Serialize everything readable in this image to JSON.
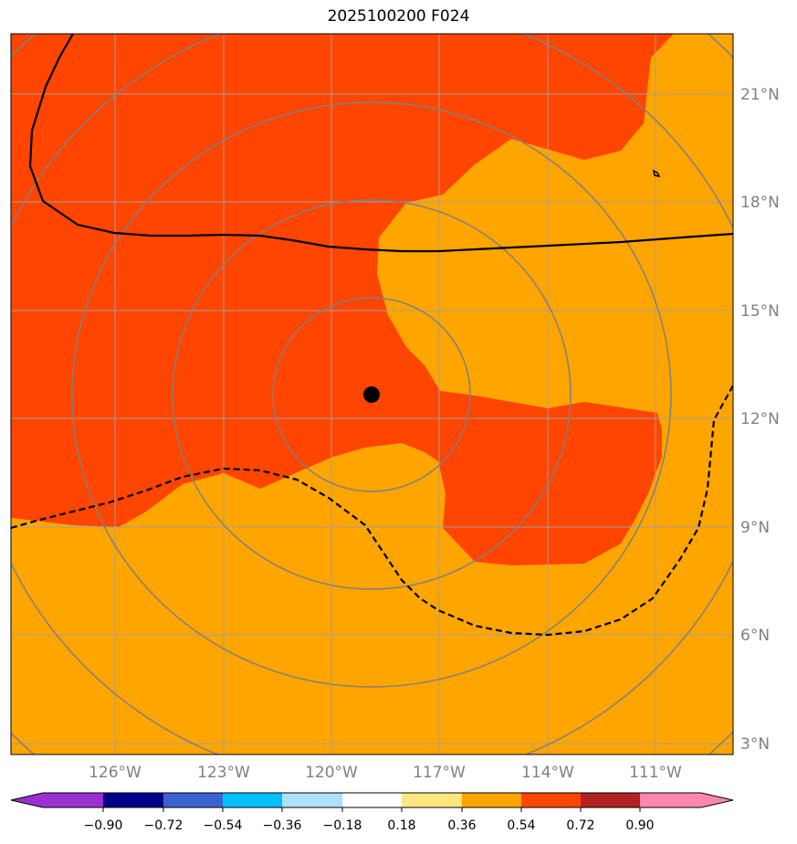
{
  "title": "2025100200 F024",
  "map": {
    "background_color": "#ffa500",
    "region_color": "#ff4500",
    "grid_color": "#a0a0a0",
    "ring_color": "#808080",
    "center_marker": "storm-center-dot",
    "latitudes": [
      "21°N",
      "18°N",
      "15°N",
      "12°N",
      "9°N",
      "6°N",
      "3°N"
    ],
    "longitudes": [
      "126°W",
      "123°W",
      "120°W",
      "117°W",
      "114°W",
      "111°W"
    ]
  },
  "colorbar": {
    "ticks": [
      "−0.90",
      "−0.72",
      "−0.54",
      "−0.36",
      "−0.18",
      "0.18",
      "0.36",
      "0.54",
      "0.72",
      "0.90"
    ],
    "colors": [
      "#9b30d0",
      "#00008b",
      "#3a62d0",
      "#00bfff",
      "#b0e0ff",
      "#ffffff",
      "#ffe680",
      "#ffa500",
      "#ff4500",
      "#b22222",
      "#ff88aa"
    ]
  }
}
